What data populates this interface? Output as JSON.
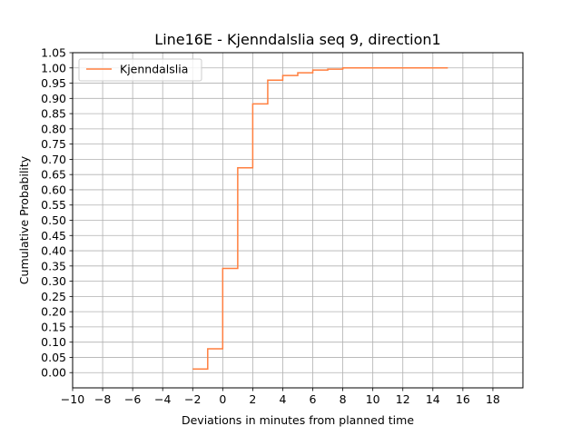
{
  "chart_data": {
    "type": "line",
    "step": "post",
    "title": "Line16E - Kjenndalslia seq 9, direction1",
    "xlabel": "Deviations in minutes from planned time",
    "ylabel": "Cumulative Probability",
    "xlim": [
      -10,
      20
    ],
    "ylim": [
      -0.05,
      1.05
    ],
    "xticks": [
      -10,
      -8,
      -6,
      -4,
      -2,
      0,
      2,
      4,
      6,
      8,
      10,
      12,
      14,
      16,
      18
    ],
    "xtick_labels": [
      "−10",
      "−8",
      "−6",
      "−4",
      "−2",
      "0",
      "2",
      "4",
      "6",
      "8",
      "10",
      "12",
      "14",
      "16",
      "18"
    ],
    "yticks": [
      0.0,
      0.05,
      0.1,
      0.15,
      0.2,
      0.25,
      0.3,
      0.35,
      0.4,
      0.45,
      0.5,
      0.55,
      0.6,
      0.65,
      0.7,
      0.75,
      0.8,
      0.85,
      0.9,
      0.95,
      1.0,
      1.05
    ],
    "ytick_labels": [
      "0.00",
      "0.05",
      "0.10",
      "0.15",
      "0.20",
      "0.25",
      "0.30",
      "0.35",
      "0.40",
      "0.45",
      "0.50",
      "0.55",
      "0.60",
      "0.65",
      "0.70",
      "0.75",
      "0.80",
      "0.85",
      "0.90",
      "0.95",
      "1.00",
      "1.05"
    ],
    "grid": true,
    "legend_position": "top-left",
    "series": [
      {
        "name": "Kjenndalslia",
        "color": "#ff7f3f",
        "x": [
          -2,
          -1,
          0,
          1,
          2,
          3,
          4,
          5,
          6,
          7,
          8,
          15
        ],
        "y": [
          0.012,
          0.078,
          0.342,
          0.672,
          0.882,
          0.96,
          0.975,
          0.984,
          0.993,
          0.996,
          1.0,
          1.0
        ]
      }
    ]
  }
}
